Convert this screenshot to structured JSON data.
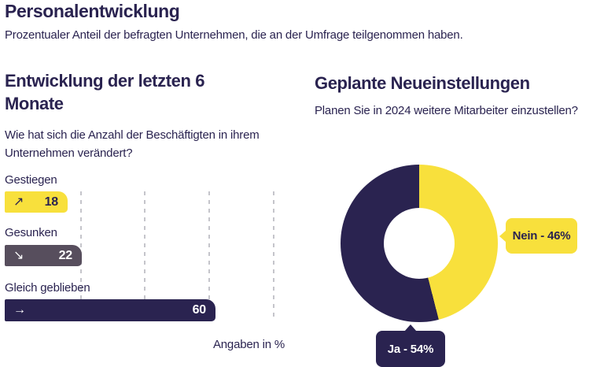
{
  "colors": {
    "navy": "#2A2350",
    "yellow": "#F8E03C",
    "gray_purple": "#574E5D",
    "gridline": "#C5C5CB",
    "background": "#FFFFFF"
  },
  "header": {
    "title": "Personalentwicklung",
    "subtitle": "Prozentualer Anteil der befragten Unternehmen, die an der Umfrage teilgenommen haben."
  },
  "left_chart": {
    "title": "Entwicklung der letzten 6 Monate",
    "question": "Wie hat sich die Anzahl der Beschäftigten in ihrem Unternehmen verändert?",
    "footnote": "Angaben in %",
    "bars": [
      {
        "label": "Gestiegen",
        "value": 18,
        "icon": "↗",
        "color": "#F8E03C"
      },
      {
        "label": "Gesunken",
        "value": 22,
        "icon": "↘",
        "color": "#574E5D"
      },
      {
        "label": "Gleich geblieben",
        "value": 60,
        "icon": "→",
        "color": "#2A2350"
      }
    ]
  },
  "right_chart": {
    "title": "Geplante Neueinstellungen",
    "question": "Planen Sie in 2024 weitere Mitarbeiter einzustellen?",
    "slices": [
      {
        "label": "Ja",
        "value": 54,
        "display": "Ja - 54%",
        "color": "#2A2350"
      },
      {
        "label": "Nein",
        "value": 46,
        "display": "Nein - 46%",
        "color": "#F8E03C"
      }
    ]
  },
  "chart_data": [
    {
      "type": "bar",
      "orientation": "horizontal",
      "title": "Entwicklung der letzten 6 Monate",
      "subtitle": "Wie hat sich die Anzahl der Beschäftigten in ihrem Unternehmen verändert?",
      "categories": [
        "Gestiegen",
        "Gesunken",
        "Gleich geblieben"
      ],
      "values": [
        18,
        22,
        60
      ],
      "unit": "%",
      "xlabel": "Angaben in %",
      "xlim": [
        0,
        90
      ],
      "grid": "dashed-vertical",
      "colors": [
        "#F8E03C",
        "#574E5D",
        "#2A2350"
      ],
      "bar_icons": [
        "↗",
        "↘",
        "→"
      ]
    },
    {
      "type": "pie",
      "subtype": "donut",
      "title": "Geplante Neueinstellungen",
      "subtitle": "Planen Sie in 2024 weitere Mitarbeiter einzustellen?",
      "labels": [
        "Ja",
        "Nein"
      ],
      "values": [
        54,
        46
      ],
      "colors": [
        "#2A2350",
        "#F8E03C"
      ],
      "legend_position": "callout-labels",
      "start_angle_deg": 0,
      "direction": "clockwise",
      "first_slice_from_top": "Nein"
    }
  ]
}
